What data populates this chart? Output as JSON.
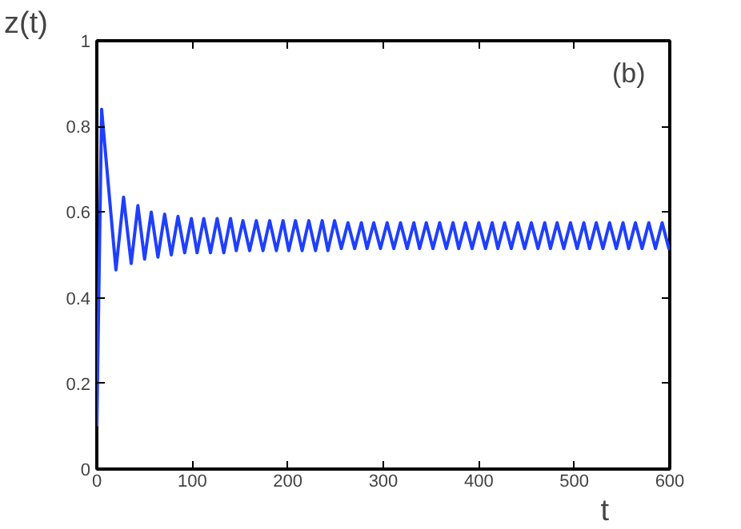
{
  "chart_data": {
    "type": "line",
    "xlabel": "t",
    "ylabel": "z(t)",
    "annotations": [
      "(b)"
    ],
    "xlim": [
      0,
      600
    ],
    "ylim": [
      0,
      1
    ],
    "xticks": [
      0,
      100,
      200,
      300,
      400,
      500,
      600
    ],
    "yticks": [
      0,
      0.2,
      0.4,
      0.6,
      0.8,
      1
    ],
    "grid": false,
    "series": [
      {
        "color": "#1f3fff",
        "x": [
          0,
          5,
          20,
          28,
          36,
          43,
          50,
          57,
          64,
          71,
          78,
          85,
          92,
          99,
          105,
          112,
          119,
          126,
          133,
          140,
          146,
          153,
          160,
          167,
          174,
          181,
          188,
          195,
          201,
          208,
          215,
          222,
          229,
          236,
          242,
          249,
          256,
          263,
          270,
          277,
          283,
          290,
          297,
          304,
          311,
          318,
          325,
          332,
          338,
          345,
          352,
          359,
          366,
          373,
          379,
          386,
          393,
          400,
          407,
          414,
          420,
          427,
          434,
          441,
          448,
          455,
          462,
          469,
          475,
          482,
          489,
          496,
          503,
          510,
          516,
          523,
          530,
          537,
          544,
          551,
          557,
          564,
          571,
          578,
          585,
          592,
          599,
          600
        ],
        "values": [
          0.1,
          0.84,
          0.465,
          0.635,
          0.48,
          0.615,
          0.49,
          0.6,
          0.495,
          0.595,
          0.5,
          0.59,
          0.505,
          0.585,
          0.505,
          0.585,
          0.505,
          0.585,
          0.505,
          0.585,
          0.51,
          0.58,
          0.51,
          0.58,
          0.51,
          0.58,
          0.51,
          0.58,
          0.51,
          0.58,
          0.51,
          0.58,
          0.51,
          0.58,
          0.51,
          0.58,
          0.515,
          0.575,
          0.515,
          0.575,
          0.515,
          0.575,
          0.515,
          0.575,
          0.515,
          0.575,
          0.515,
          0.575,
          0.515,
          0.575,
          0.515,
          0.575,
          0.515,
          0.575,
          0.515,
          0.575,
          0.515,
          0.575,
          0.515,
          0.575,
          0.515,
          0.575,
          0.515,
          0.575,
          0.515,
          0.575,
          0.515,
          0.575,
          0.515,
          0.575,
          0.515,
          0.575,
          0.515,
          0.575,
          0.515,
          0.575,
          0.515,
          0.575,
          0.515,
          0.575,
          0.515,
          0.575,
          0.515,
          0.575,
          0.515,
          0.575,
          0.515,
          0.52
        ]
      }
    ]
  }
}
